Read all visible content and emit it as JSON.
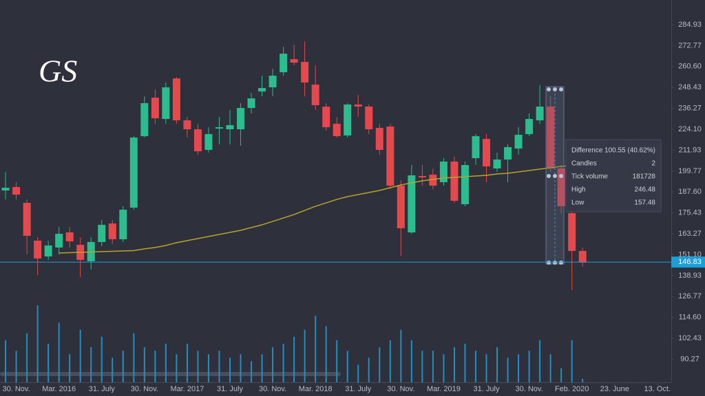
{
  "chart_data": {
    "type": "candlestick",
    "annotation": "GS",
    "open": [
      188.5,
      190.5,
      181.3,
      159.3,
      150.1,
      155.3,
      164.1,
      156.9,
      147.3,
      158.5,
      169.3,
      160.1,
      178.5,
      220.1,
      242.5,
      230.1,
      253.7,
      229.3,
      224.1,
      212.1,
      224.5,
      224.1,
      224.1,
      236.5,
      246.1,
      248.5,
      257.3,
      264.9,
      263.3,
      250.1,
      237.3,
      227.3,
      220.5,
      238.5,
      237.3,
      224.9,
      225.7,
      191.3,
      164.1,
      196.9,
      197.7,
      193.3,
      205.3,
      180.5,
      207.3,
      218.5,
      201.3,
      206.5,
      212.9,
      221.3,
      229.3,
      237.3,
      201.3,
      175.3,
      153.3
    ],
    "high": [
      199.3,
      193.3,
      183.3,
      161.3,
      159.3,
      167.3,
      167.3,
      161.3,
      161.3,
      171.3,
      171.3,
      179.3,
      220.1,
      243.3,
      247.3,
      251.3,
      254.5,
      231.3,
      227.3,
      225.3,
      231.3,
      235.3,
      239.3,
      245.3,
      255.3,
      259.3,
      272.1,
      273.3,
      275.3,
      261.3,
      239.3,
      231.3,
      239.3,
      244.1,
      238.5,
      227.3,
      227.3,
      194.5,
      203.3,
      203.3,
      201.3,
      207.3,
      208.1,
      205.3,
      221.3,
      221.3,
      210.5,
      215.3,
      225.3,
      233.3,
      249.7,
      243.3,
      203.3,
      187.3,
      155.3
    ],
    "low": [
      183.3,
      183.3,
      151.3,
      139.3,
      148.1,
      151.3,
      155.3,
      138.1,
      142.5,
      156.1,
      157.3,
      158.5,
      177.3,
      219.3,
      227.3,
      227.3,
      227.3,
      219.3,
      209.3,
      210.5,
      215.3,
      215.3,
      214.5,
      233.3,
      243.3,
      243.3,
      255.3,
      261.3,
      243.3,
      235.3,
      223.3,
      219.3,
      219.3,
      231.3,
      221.3,
      209.3,
      189.3,
      150.5,
      163.3,
      191.3,
      189.3,
      191.3,
      181.3,
      179.3,
      203.3,
      193.3,
      199.3,
      193.3,
      209.3,
      220.1,
      227.3,
      199.3,
      175.3,
      130.5,
      144.1
    ],
    "close": [
      190.1,
      186.1,
      162.1,
      148.9,
      156.5,
      163.3,
      158.9,
      148.1,
      158.5,
      168.5,
      160.1,
      177.3,
      219.3,
      239.3,
      230.5,
      248.5,
      229.3,
      224.1,
      211.3,
      221.3,
      225.3,
      226.5,
      236.5,
      242.1,
      248.1,
      255.3,
      268.1,
      262.9,
      251.3,
      238.1,
      225.3,
      220.1,
      238.5,
      237.3,
      224.1,
      212.1,
      191.3,
      166.5,
      197.3,
      196.1,
      191.3,
      205.3,
      182.5,
      203.3,
      220.1,
      202.5,
      206.5,
      213.7,
      220.9,
      230.1,
      237.3,
      201.3,
      179.3,
      153.3,
      146.5
    ],
    "moving_average": [
      null,
      null,
      null,
      null,
      null,
      152.1,
      152.3,
      152.5,
      152.7,
      152.9,
      153.1,
      153.3,
      153.5,
      154.5,
      155.3,
      156.5,
      158.1,
      159.3,
      160.5,
      161.7,
      162.9,
      164.1,
      165.3,
      166.9,
      168.5,
      170.5,
      172.5,
      174.5,
      176.9,
      179.3,
      181.3,
      183.3,
      184.9,
      186.1,
      187.3,
      188.5,
      190.1,
      191.7,
      192.9,
      194.1,
      194.9,
      195.7,
      196.1,
      196.5,
      196.9,
      197.3,
      198.1,
      198.5,
      199.3,
      200.1,
      200.9,
      201.7,
      202.5,
      202.9,
      null
    ],
    "volume": [
      60,
      45,
      70,
      110,
      55,
      85,
      40,
      75,
      50,
      65,
      35,
      45,
      70,
      50,
      45,
      55,
      40,
      55,
      45,
      40,
      45,
      35,
      40,
      30,
      40,
      50,
      55,
      65,
      75,
      95,
      80,
      60,
      45,
      25,
      35,
      50,
      60,
      75,
      60,
      45,
      45,
      40,
      50,
      55,
      45,
      40,
      50,
      35,
      40,
      45,
      60,
      40,
      20,
      60,
      5
    ],
    "up_color": "#2bbd8e",
    "down_color": "#e5484d",
    "ma_color": "#b7a628",
    "volume_color": "#1f8fc4",
    "ylim": [
      76.9,
      299.33
    ],
    "yticks": [
      {
        "value": 90.27,
        "label": "90.27"
      },
      {
        "value": 102.43,
        "label": "102.43"
      },
      {
        "value": 114.6,
        "label": "114.60"
      },
      {
        "value": 126.77,
        "label": "126.77"
      },
      {
        "value": 138.93,
        "label": "138.93"
      },
      {
        "value": 151.1,
        "label": "151.10"
      },
      {
        "value": 163.27,
        "label": "163.27"
      },
      {
        "value": 175.43,
        "label": "175.43"
      },
      {
        "value": 187.6,
        "label": "187.60"
      },
      {
        "value": 199.77,
        "label": "199.77"
      },
      {
        "value": 211.93,
        "label": "211.93"
      },
      {
        "value": 224.1,
        "label": "224.10"
      },
      {
        "value": 236.27,
        "label": "236.27"
      },
      {
        "value": 248.43,
        "label": "248.43"
      },
      {
        "value": 260.6,
        "label": "260.60"
      },
      {
        "value": 272.77,
        "label": "272.77"
      },
      {
        "value": 284.93,
        "label": "284.93"
      }
    ],
    "xlim": [
      -0.52,
      62.3
    ],
    "xticks": [
      {
        "value": 1,
        "label": "30. Nov."
      },
      {
        "value": 5,
        "label": "Mar. 2016"
      },
      {
        "value": 9,
        "label": "31. July"
      },
      {
        "value": 13,
        "label": "30. Nov."
      },
      {
        "value": 17,
        "label": "Mar. 2017"
      },
      {
        "value": 21,
        "label": "31. July"
      },
      {
        "value": 25,
        "label": "30. Nov."
      },
      {
        "value": 29,
        "label": "Mar. 2018"
      },
      {
        "value": 33,
        "label": "31. July"
      },
      {
        "value": 37,
        "label": "30. Nov."
      },
      {
        "value": 41,
        "label": "Mar. 2019"
      },
      {
        "value": 45,
        "label": "31. July"
      },
      {
        "value": 49,
        "label": "30. Nov."
      },
      {
        "value": 53,
        "label": "Feb. 2020"
      },
      {
        "value": 57,
        "label": "23. June"
      },
      {
        "value": 61,
        "label": "13. Oct."
      }
    ],
    "last_price": {
      "value": 146.83,
      "label": "146.83",
      "color": "#1a9fd9"
    },
    "measure": {
      "rows": [
        [
          "Difference",
          "100.55 (40.62%)"
        ],
        [
          "Candles",
          "2"
        ],
        [
          "Tick volume",
          "181728"
        ],
        [
          "High",
          "246.48"
        ],
        [
          "Low",
          "157.48"
        ]
      ]
    }
  }
}
